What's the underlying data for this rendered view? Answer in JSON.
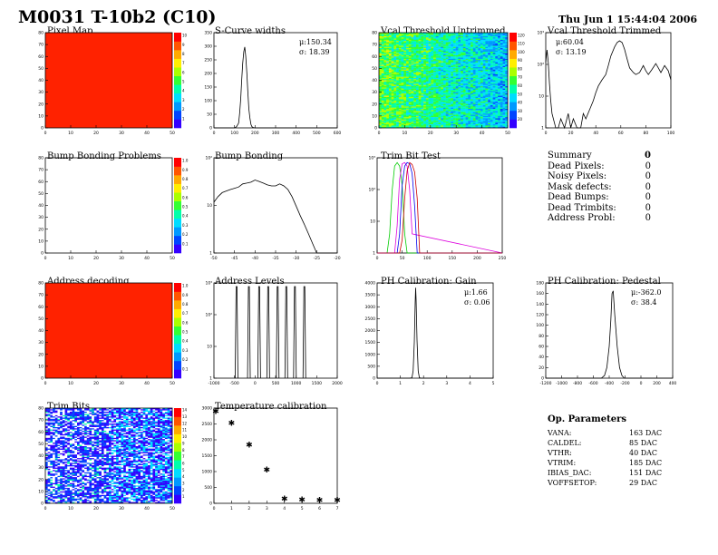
{
  "header": {
    "title": "M0031 T-10b2 (C10)",
    "date": "Thu Jun  1 15:44:04 2006"
  },
  "colors": {
    "map_red": "#ff2200",
    "palette": [
      "#3300ff",
      "#0044ff",
      "#0099ff",
      "#00ddff",
      "#00ffaa",
      "#33ff33",
      "#aaff00",
      "#ffee00",
      "#ffaa00",
      "#ff5500",
      "#ff0000"
    ]
  },
  "panels": {
    "pixel_map": {
      "title": "Pixel Map"
    },
    "scurve": {
      "title": "S-Curve widths",
      "mean": "μ:150.34",
      "sigma": "σ: 18.39"
    },
    "vcal_untrimmed": {
      "title": "Vcal Threshold Untrimmed"
    },
    "vcal_trimmed": {
      "title": "Vcal Threshold Trimmed",
      "mean": "μ:60.04",
      "sigma": "σ: 13.19"
    },
    "bump_problems": {
      "title": "Bump Bonding Problems"
    },
    "bump_bonding": {
      "title": "Bump Bonding"
    },
    "trim_bit_test": {
      "title": "Trim Bit Test"
    },
    "address_decoding": {
      "title": "Address decoding"
    },
    "address_levels": {
      "title": "Address Levels"
    },
    "ph_gain": {
      "title": "PH Calibration: Gain",
      "mean": "μ:1.66",
      "sigma": "σ: 0.06"
    },
    "ph_pedestal": {
      "title": "PH Calibration: Pedestal",
      "mean": "μ:-362.0",
      "sigma": "σ: 38.4"
    },
    "trim_bits": {
      "title": "Trim Bits"
    },
    "temperature": {
      "title": "Temperature calibration"
    }
  },
  "summary": {
    "title": "Summary",
    "value": "0",
    "rows": [
      {
        "label": "Dead Pixels:",
        "value": "0"
      },
      {
        "label": "Noisy Pixels:",
        "value": "0"
      },
      {
        "label": "Mask defects:",
        "value": "0"
      },
      {
        "label": "Dead Bumps:",
        "value": "0"
      },
      {
        "label": "Dead Trimbits:",
        "value": "0"
      },
      {
        "label": "Address Probl:",
        "value": "0"
      }
    ]
  },
  "op_params": {
    "title": "Op. Parameters",
    "rows": [
      {
        "label": "VANA:",
        "value": "163 DAC"
      },
      {
        "label": "CALDEL:",
        "value": "85 DAC"
      },
      {
        "label": "VTHR:",
        "value": "40 DAC"
      },
      {
        "label": "VTRIM:",
        "value": "185 DAC"
      },
      {
        "label": "IBIAS_DAC:",
        "value": "151 DAC"
      },
      {
        "label": "VOFFSETOP:",
        "value": "29 DAC"
      }
    ]
  },
  "chart_data": [
    {
      "id": "pixel_map",
      "type": "heatmap",
      "title": "Pixel Map",
      "x_ticks": [
        "0",
        "10",
        "20",
        "30",
        "40",
        "50"
      ],
      "y_ticks": [
        "0",
        "10",
        "20",
        "30",
        "40",
        "50",
        "60",
        "70",
        "80"
      ],
      "z_ticks": [
        "1",
        "2",
        "3",
        "4",
        "5",
        "6",
        "7",
        "8",
        "9",
        "10"
      ],
      "uniform_value": 10
    },
    {
      "id": "scurve",
      "type": "line",
      "title": "S-Curve widths",
      "x_ticks": [
        "0",
        "100",
        "200",
        "300",
        "400",
        "500",
        "600"
      ],
      "y_ticks": [
        "0",
        "50",
        "100",
        "150",
        "200",
        "250",
        "300",
        "350"
      ],
      "x": [
        0,
        100,
        110,
        120,
        125,
        130,
        135,
        140,
        145,
        150,
        155,
        160,
        165,
        170,
        175,
        180,
        185,
        190,
        200,
        210,
        600
      ],
      "y": [
        0,
        0,
        5,
        20,
        60,
        120,
        200,
        270,
        320,
        340,
        300,
        230,
        150,
        80,
        40,
        15,
        5,
        2,
        0,
        0,
        0
      ],
      "xlim": [
        0,
        600
      ],
      "ylim": [
        0,
        400
      ]
    },
    {
      "id": "vcal_untrimmed",
      "type": "heatmap",
      "title": "Vcal Threshold Untrimmed",
      "x_ticks": [
        "0",
        "10",
        "20",
        "30",
        "40",
        "50"
      ],
      "y_ticks": [
        "0",
        "10",
        "20",
        "30",
        "40",
        "50",
        "60",
        "70",
        "80"
      ],
      "z_ticks": [
        "20",
        "30",
        "40",
        "50",
        "60",
        "70",
        "80",
        "90",
        "100",
        "110",
        "120"
      ]
    },
    {
      "id": "vcal_trimmed",
      "type": "line",
      "title": "Vcal Threshold Trimmed",
      "log_y": true,
      "x_ticks": [
        "0",
        "20",
        "40",
        "60",
        "80",
        "100"
      ],
      "y_ticks": [
        "1",
        "10",
        "10²",
        "10³"
      ],
      "x": [
        0,
        1,
        2,
        3,
        4,
        5,
        8,
        10,
        12,
        15,
        18,
        20,
        22,
        25,
        28,
        30,
        32,
        35,
        38,
        40,
        42,
        45,
        48,
        50,
        52,
        55,
        57,
        59,
        61,
        63,
        65,
        67,
        70,
        72,
        75,
        78,
        80,
        82,
        85,
        88,
        90,
        92,
        95,
        98,
        100
      ],
      "y": [
        150,
        400,
        150,
        30,
        8,
        3,
        1,
        1,
        2,
        1,
        3,
        1,
        2,
        1,
        1,
        3,
        2,
        4,
        8,
        15,
        25,
        40,
        60,
        120,
        250,
        500,
        700,
        800,
        700,
        420,
        200,
        100,
        70,
        60,
        70,
        120,
        80,
        60,
        90,
        140,
        100,
        70,
        120,
        80,
        40
      ],
      "xlim": [
        0,
        100
      ],
      "ylim": [
        1,
        1500
      ]
    },
    {
      "id": "bump_problems",
      "type": "heatmap",
      "title": "Bump Bonding Problems",
      "x_ticks": [
        "0",
        "10",
        "20",
        "30",
        "40",
        "50"
      ],
      "y_ticks": [
        "0",
        "10",
        "20",
        "30",
        "40",
        "50",
        "60",
        "70",
        "80"
      ],
      "z_ticks": [
        "0.1",
        "0.2",
        "0.3",
        "0.4",
        "0.5",
        "0.6",
        "0.7",
        "0.8",
        "0.9",
        "1.0"
      ],
      "uniform_value": 0
    },
    {
      "id": "bump_bonding",
      "type": "line",
      "title": "Bump Bonding",
      "log_y": true,
      "x_ticks": [
        "-50",
        "-45",
        "-40",
        "-35",
        "-30",
        "-25",
        "-20"
      ],
      "y_ticks": [
        "1",
        "10",
        "10²"
      ],
      "x": [
        -50,
        -49,
        -48,
        -47,
        -46,
        -45,
        -44,
        -43,
        -42,
        -41,
        -40,
        -39,
        -38,
        -37,
        -36,
        -35,
        -34,
        -33,
        -32,
        -31,
        -30,
        -29,
        -28,
        -27,
        -26,
        -25,
        -24,
        -23,
        -22,
        -21,
        -20
      ],
      "y": [
        40,
        60,
        80,
        90,
        100,
        110,
        120,
        150,
        160,
        170,
        200,
        180,
        160,
        140,
        130,
        130,
        150,
        130,
        100,
        60,
        30,
        15,
        8,
        4,
        2,
        1,
        1,
        1,
        1,
        1,
        1
      ],
      "xlim": [
        -50,
        -20
      ],
      "ylim": [
        1,
        1000
      ]
    },
    {
      "id": "trim_bit_test",
      "type": "line",
      "title": "Trim Bit Test",
      "log_y": true,
      "x_ticks": [
        "0",
        "50",
        "100",
        "150",
        "200",
        "250"
      ],
      "y_ticks": [
        "1",
        "10",
        "10²",
        "10³"
      ],
      "series": [
        {
          "color": "#00cc00",
          "x": [
            0,
            20,
            25,
            30,
            35,
            40,
            45,
            50,
            55,
            60,
            250
          ],
          "y": [
            0,
            0,
            5,
            200,
            1500,
            2000,
            1500,
            300,
            5,
            0,
            0
          ]
        },
        {
          "color": "#dd00dd",
          "x": [
            0,
            35,
            40,
            45,
            50,
            55,
            60,
            65,
            70,
            250
          ],
          "y": [
            0,
            0,
            10,
            500,
            1800,
            2000,
            1500,
            200,
            5,
            0
          ]
        },
        {
          "color": "#0000ee",
          "x": [
            0,
            40,
            45,
            50,
            55,
            60,
            65,
            70,
            75,
            80,
            250
          ],
          "y": [
            0,
            0,
            5,
            300,
            1500,
            2000,
            1800,
            800,
            50,
            0,
            0
          ]
        },
        {
          "color": "#cc0000",
          "x": [
            0,
            45,
            50,
            55,
            60,
            65,
            70,
            75,
            80,
            85,
            250
          ],
          "y": [
            0,
            0,
            3,
            100,
            1000,
            2000,
            1700,
            900,
            100,
            0,
            0
          ]
        }
      ],
      "xlim": [
        0,
        250
      ],
      "ylim": [
        1,
        3000
      ]
    },
    {
      "id": "address_decoding",
      "type": "heatmap",
      "title": "Address decoding",
      "x_ticks": [
        "0",
        "10",
        "20",
        "30",
        "40",
        "50"
      ],
      "y_ticks": [
        "0",
        "10",
        "20",
        "30",
        "40",
        "50",
        "60",
        "70",
        "80"
      ],
      "z_ticks": [
        "0.1",
        "0.2",
        "0.3",
        "0.4",
        "0.5",
        "0.6",
        "0.7",
        "0.8",
        "0.9",
        "1.0"
      ],
      "uniform_value": 1
    },
    {
      "id": "address_levels",
      "type": "line",
      "title": "Address Levels",
      "log_y": true,
      "x_ticks": [
        "-1000",
        "-500",
        "0",
        "500",
        "1000",
        "1500",
        "2000"
      ],
      "y_ticks": [
        "1",
        "10",
        "10²",
        "10³"
      ],
      "peaks_x": [
        -450,
        -150,
        100,
        320,
        550,
        760,
        970,
        1200
      ],
      "peak_y": 1500,
      "xlim": [
        -1000,
        2000
      ],
      "ylim": [
        1,
        2000
      ]
    },
    {
      "id": "ph_gain",
      "type": "line",
      "title": "PH Calibration: Gain",
      "x_ticks": [
        "0",
        "1",
        "2",
        "3",
        "4",
        "5"
      ],
      "y_ticks": [
        "0",
        "500",
        "1000",
        "1500",
        "2000",
        "2500",
        "3000",
        "3500",
        "4000"
      ],
      "x": [
        0,
        1.4,
        1.5,
        1.55,
        1.6,
        1.64,
        1.66,
        1.68,
        1.72,
        1.77,
        1.82,
        1.9,
        5
      ],
      "y": [
        0,
        0,
        20,
        300,
        1500,
        3200,
        3800,
        3300,
        1600,
        300,
        20,
        0,
        0
      ],
      "xlim": [
        0,
        5
      ],
      "ylim": [
        0,
        4000
      ]
    },
    {
      "id": "ph_pedestal",
      "type": "line",
      "title": "PH Calibration: Pedestal",
      "x_ticks": [
        "-1200",
        "-1000",
        "-800",
        "-600",
        "-400",
        "-200",
        "0",
        "200",
        "400"
      ],
      "y_ticks": [
        "0",
        "20",
        "40",
        "60",
        "80",
        "100",
        "120",
        "140",
        "160",
        "180"
      ],
      "x": [
        -1200,
        -500,
        -460,
        -430,
        -400,
        -380,
        -365,
        -350,
        -330,
        -300,
        -270,
        -240,
        -210,
        400
      ],
      "y": [
        0,
        0,
        5,
        20,
        60,
        110,
        160,
        165,
        120,
        60,
        20,
        5,
        0,
        0
      ],
      "xlim": [
        -1200,
        400
      ],
      "ylim": [
        0,
        180
      ]
    },
    {
      "id": "trim_bits",
      "type": "heatmap",
      "title": "Trim Bits",
      "x_ticks": [
        "0",
        "10",
        "20",
        "30",
        "40",
        "50"
      ],
      "y_ticks": [
        "0",
        "10",
        "20",
        "30",
        "40",
        "50",
        "60",
        "70",
        "80"
      ],
      "z_ticks": [
        "1",
        "2",
        "3",
        "4",
        "5",
        "6",
        "7",
        "8",
        "9",
        "10",
        "11",
        "12",
        "13",
        "14"
      ]
    },
    {
      "id": "temperature",
      "type": "scatter",
      "title": "Temperature calibration",
      "x_ticks": [
        "0",
        "1",
        "2",
        "3",
        "4",
        "5",
        "6",
        "7"
      ],
      "y_ticks": [
        "0",
        "500",
        "1000",
        "1500",
        "2000",
        "2500",
        "3000"
      ],
      "x": [
        0,
        1,
        2,
        3,
        4,
        5,
        6,
        7
      ],
      "y": [
        2900,
        2530,
        1840,
        1060,
        140,
        110,
        100,
        100
      ],
      "xlim": [
        0,
        7
      ],
      "ylim": [
        0,
        3000
      ]
    }
  ]
}
